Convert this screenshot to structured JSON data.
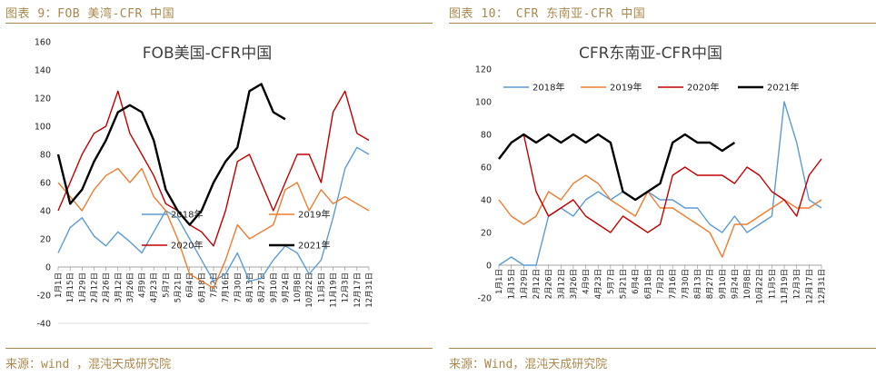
{
  "left": {
    "caption": "图表 9：FOB 美湾-CFR 中国",
    "source": "来源：wind ，混沌天成研究院",
    "chart_data": {
      "type": "line",
      "title": "FOB美国-CFR中国",
      "ylim": [
        -40,
        160
      ],
      "yticks": [
        -40,
        -20,
        0,
        20,
        40,
        60,
        80,
        100,
        120,
        140,
        160
      ],
      "categories": [
        "1月1日",
        "1月15日",
        "1月29日",
        "2月12日",
        "2月26日",
        "3月12日",
        "3月26日",
        "4月9日",
        "4月23日",
        "5月7日",
        "5月21日",
        "6月4日",
        "6月18日",
        "7月2日",
        "7月16日",
        "7月30日",
        "8月13日",
        "8月27日",
        "9月10日",
        "9月24日",
        "10月8日",
        "10月22日",
        "11月5日",
        "11月19日",
        "12月3日",
        "12月17日",
        "12月31日"
      ],
      "series": [
        {
          "name": "2018年",
          "color": "#5b9bd5",
          "values": [
            10,
            28,
            35,
            22,
            15,
            25,
            18,
            10,
            25,
            40,
            35,
            20,
            5,
            -10,
            -5,
            10,
            -10,
            -8,
            5,
            15,
            10,
            -5,
            5,
            35,
            70,
            85,
            80
          ]
        },
        {
          "name": "2019年",
          "color": "#ed7d31",
          "values": [
            60,
            50,
            40,
            55,
            65,
            70,
            60,
            70,
            50,
            40,
            20,
            -5,
            -10,
            -15,
            5,
            30,
            20,
            25,
            30,
            55,
            60,
            40,
            55,
            45,
            50,
            45,
            40
          ]
        },
        {
          "name": "2020年",
          "color": "#c00000",
          "values": [
            40,
            60,
            80,
            95,
            100,
            125,
            95,
            80,
            65,
            45,
            40,
            30,
            25,
            15,
            40,
            75,
            80,
            60,
            40,
            60,
            80,
            80,
            60,
            110,
            125,
            95,
            90
          ]
        },
        {
          "name": "2021年",
          "color": "#000000",
          "values": [
            80,
            45,
            55,
            75,
            90,
            110,
            115,
            110,
            90,
            55,
            40,
            30,
            40,
            60,
            75,
            85,
            125,
            130,
            110,
            105,
            null,
            null,
            null,
            null,
            null,
            null,
            null
          ]
        }
      ]
    }
  },
  "right": {
    "caption": "图表 10： CFR 东南亚-CFR 中国",
    "source": "来源：Wind，混沌天成研究院",
    "chart_data": {
      "type": "line",
      "title": "CFR东南亚-CFR中国",
      "ylim": [
        -20,
        120
      ],
      "yticks": [
        -20,
        0,
        20,
        40,
        60,
        80,
        100,
        120
      ],
      "categories": [
        "1月1日",
        "1月15日",
        "1月29日",
        "2月12日",
        "2月26日",
        "3月12日",
        "3月26日",
        "4月9日",
        "4月23日",
        "5月7日",
        "5月21日",
        "6月4日",
        "6月18日",
        "7月2日",
        "7月16日",
        "7月30日",
        "8月13日",
        "8月27日",
        "9月10日",
        "9月24日",
        "10月8日",
        "10月22日",
        "11月5日",
        "11月19日",
        "12月3日",
        "12月17日",
        "12月31日"
      ],
      "series": [
        {
          "name": "2018年",
          "color": "#5b9bd5",
          "values": [
            0,
            5,
            0,
            0,
            30,
            35,
            30,
            40,
            45,
            40,
            45,
            40,
            45,
            40,
            40,
            35,
            35,
            25,
            20,
            30,
            20,
            25,
            30,
            100,
            75,
            40,
            35
          ]
        },
        {
          "name": "2019年",
          "color": "#ed7d31",
          "values": [
            40,
            30,
            25,
            30,
            45,
            40,
            50,
            55,
            50,
            40,
            35,
            30,
            45,
            35,
            35,
            30,
            25,
            20,
            5,
            25,
            25,
            30,
            35,
            40,
            35,
            35,
            40
          ]
        },
        {
          "name": "2020年",
          "color": "#c00000",
          "values": [
            65,
            75,
            80,
            45,
            30,
            35,
            40,
            30,
            25,
            20,
            30,
            25,
            20,
            25,
            55,
            60,
            55,
            55,
            55,
            50,
            60,
            55,
            45,
            40,
            30,
            55,
            65
          ]
        },
        {
          "name": "2021年",
          "color": "#000000",
          "values": [
            65,
            75,
            80,
            75,
            80,
            75,
            80,
            75,
            80,
            75,
            45,
            40,
            45,
            50,
            75,
            80,
            75,
            75,
            70,
            75,
            null,
            null,
            null,
            null,
            null,
            null,
            null
          ]
        }
      ]
    }
  }
}
